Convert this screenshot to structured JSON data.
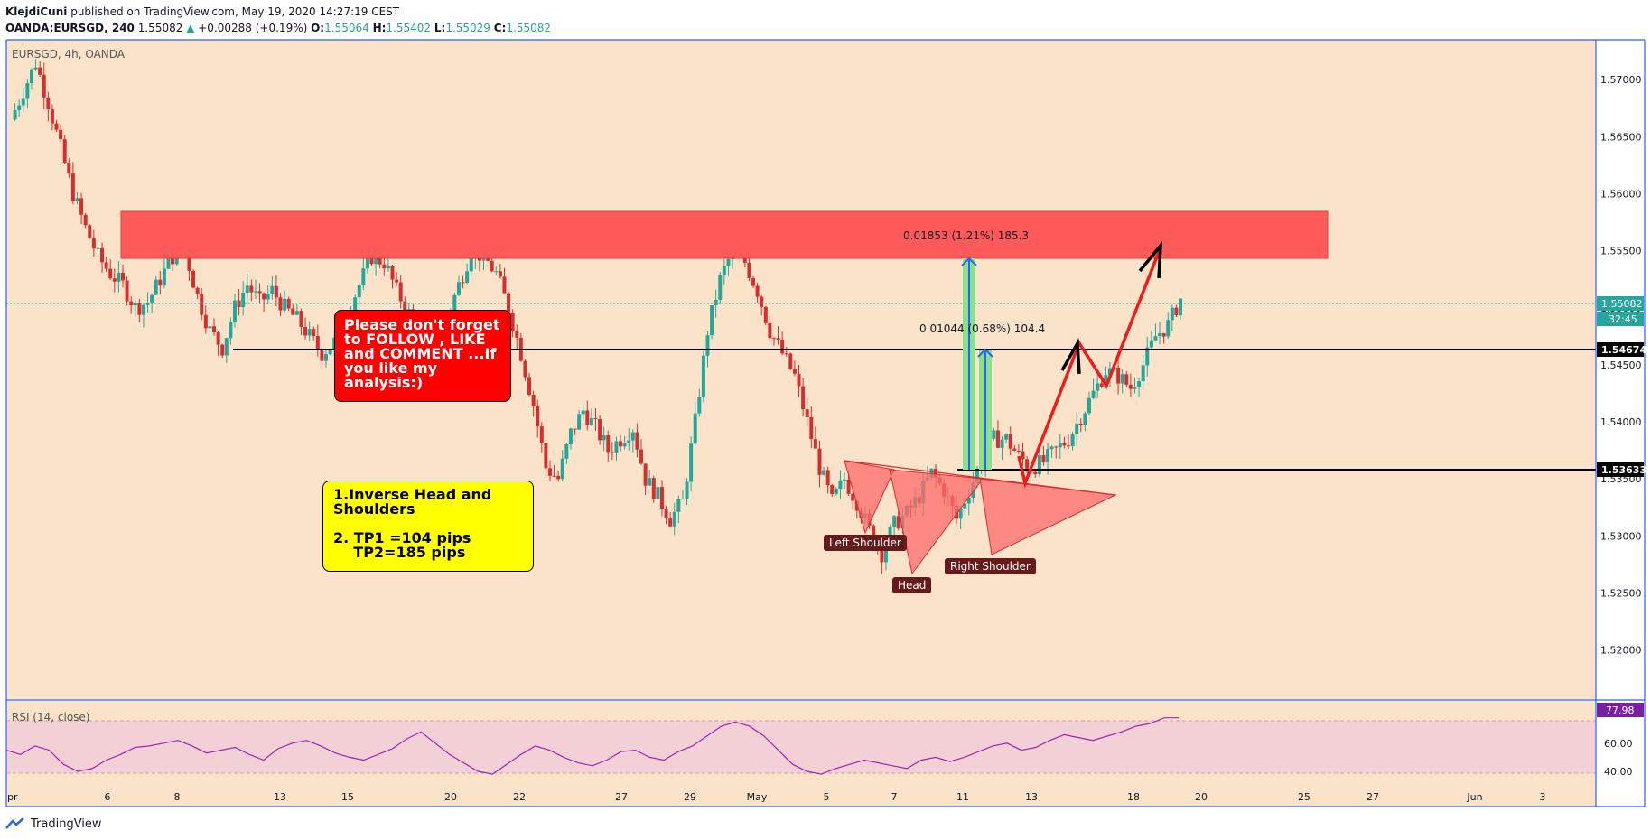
{
  "header": {
    "publisher": "KlejdiCuni",
    "published_text": "published on TradingView.com, May 19, 2020 14:27:19 CEST",
    "symbol": "OANDA:EURSGD, 240",
    "last": "1.55082",
    "change": "+0.00288 (+0.19%)",
    "o_label": "O:",
    "o_val": "1.55064",
    "h_label": "H:",
    "h_val": "1.55402",
    "l_label": "L:",
    "l_val": "1.55029",
    "c_label": "C:",
    "c_val": "1.55082"
  },
  "pane_label": "EURSGD, 4h, OANDA",
  "rsi_label": "RSI (14, close)",
  "footer": {
    "brand": "TradingView"
  },
  "annotations": {
    "promo": "Please don't forget to FOLLOW , LIKE and COMMENT ...If you like my analysis:)",
    "idea_line1": "1.Inverse Head and\nShoulders",
    "idea_line2": "2. TP1 =104 pips\n    TP2=185 pips",
    "left_shoulder": "Left Shoulder",
    "head": "Head",
    "right_shoulder": "Right Shoulder",
    "measure1": "0.01853 (1.21%) 185.3",
    "measure2": "0.01044 (0.68%) 104.4"
  },
  "colors": {
    "background": "#fbe3c9",
    "up": "#26a69a",
    "down": "#d32f2f",
    "resistance_zone": "#ff5a5a",
    "rsi_band": "#f2d0d6",
    "rsi_line": "#9c27b0",
    "axis_border": "#2962ff"
  },
  "chart_data": {
    "type": "candlestick",
    "symbol": "EURSGD",
    "timeframe": "4h",
    "y_axis": {
      "ticks": [
        1.52,
        1.525,
        1.53,
        1.535,
        1.54,
        1.545,
        1.55,
        1.555,
        1.56,
        1.565,
        1.57
      ],
      "range": [
        1.5157,
        1.5735
      ]
    },
    "x_axis": {
      "ticks": [
        "pr",
        "6",
        "8",
        "13",
        "15",
        "20",
        "22",
        "27",
        "29",
        "May",
        "5",
        "7",
        "11",
        "13",
        "18",
        "20",
        "25",
        "27",
        "Jun",
        "3"
      ]
    },
    "price_labels": {
      "last": "1.55082",
      "countdown": "32:45",
      "level1": "1.54674",
      "level2": "1.53633"
    },
    "levels": [
      1.54674,
      1.53633
    ],
    "resistance_zone": [
      1.5547,
      1.5588
    ],
    "close_path": [
      [
        0,
        1.5665
      ],
      [
        1,
        1.569
      ],
      [
        2,
        1.5715
      ],
      [
        3,
        1.568
      ],
      [
        4,
        1.564
      ],
      [
        5,
        1.56
      ],
      [
        6,
        1.557
      ],
      [
        7,
        1.5545
      ],
      [
        8,
        1.553
      ],
      [
        9,
        1.552
      ],
      [
        10,
        1.55
      ],
      [
        11,
        1.5505
      ],
      [
        12,
        1.5525
      ],
      [
        13,
        1.5545
      ],
      [
        14,
        1.555
      ],
      [
        15,
        1.551
      ],
      [
        16,
        1.548
      ],
      [
        17,
        1.5465
      ],
      [
        18,
        1.55
      ],
      [
        19,
        1.552
      ],
      [
        20,
        1.5505
      ],
      [
        21,
        1.5515
      ],
      [
        22,
        1.55
      ],
      [
        23,
        1.549
      ],
      [
        24,
        1.5475
      ],
      [
        25,
        1.546
      ],
      [
        26,
        1.547
      ],
      [
        27,
        1.5495
      ],
      [
        28,
        1.552
      ],
      [
        29,
        1.5545
      ],
      [
        30,
        1.554
      ],
      [
        31,
        1.5515
      ],
      [
        32,
        1.5495
      ],
      [
        33,
        1.548
      ],
      [
        34,
        1.5465
      ],
      [
        35,
        1.549
      ],
      [
        36,
        1.552
      ],
      [
        37,
        1.555
      ],
      [
        38,
        1.5545
      ],
      [
        39,
        1.553
      ],
      [
        40,
        1.55
      ],
      [
        41,
        1.546
      ],
      [
        42,
        1.5415
      ],
      [
        43,
        1.536
      ],
      [
        44,
        1.535
      ],
      [
        45,
        1.539
      ],
      [
        46,
        1.541
      ],
      [
        47,
        1.5395
      ],
      [
        48,
        1.5375
      ],
      [
        49,
        1.5385
      ],
      [
        50,
        1.5395
      ],
      [
        51,
        1.535
      ],
      [
        52,
        1.5335
      ],
      [
        53,
        1.5315
      ],
      [
        54,
        1.533
      ],
      [
        55,
        1.54
      ],
      [
        56,
        1.548
      ],
      [
        57,
        1.5525
      ],
      [
        58,
        1.555
      ],
      [
        59,
        1.554
      ],
      [
        60,
        1.5515
      ],
      [
        61,
        1.548
      ],
      [
        62,
        1.546
      ],
      [
        63,
        1.544
      ],
      [
        64,
        1.54
      ],
      [
        65,
        1.536
      ],
      [
        66,
        1.533
      ],
      [
        67,
        1.535
      ],
      [
        68,
        1.533
      ],
      [
        69,
        1.5305
      ],
      [
        70,
        1.5285
      ],
      [
        71,
        1.531
      ],
      [
        72,
        1.532
      ],
      [
        73,
        1.5335
      ],
      [
        74,
        1.5355
      ],
      [
        75,
        1.534
      ],
      [
        76,
        1.5315
      ],
      [
        77,
        1.534
      ],
      [
        78,
        1.5365
      ],
      [
        79,
        1.5385
      ],
      [
        80,
        1.5385
      ],
      [
        81,
        1.537
      ],
      [
        82,
        1.536
      ],
      [
        83,
        1.5365
      ],
      [
        84,
        1.5375
      ],
      [
        85,
        1.5385
      ],
      [
        86,
        1.5405
      ],
      [
        87,
        1.5425
      ],
      [
        88,
        1.5445
      ],
      [
        89,
        1.544
      ],
      [
        90,
        1.543
      ],
      [
        91,
        1.545
      ],
      [
        92,
        1.5475
      ],
      [
        93,
        1.5485
      ],
      [
        94,
        1.5508
      ]
    ],
    "rsi": {
      "levels": [
        70,
        30
      ],
      "ticks": [
        40,
        60
      ],
      "last": "77.98",
      "values": [
        55,
        52,
        58,
        55,
        45,
        40,
        42,
        48,
        52,
        57,
        58,
        60,
        62,
        58,
        53,
        55,
        57,
        52,
        48,
        56,
        60,
        62,
        58,
        53,
        50,
        48,
        52,
        56,
        63,
        68,
        60,
        52,
        46,
        40,
        38,
        45,
        52,
        58,
        55,
        50,
        46,
        44,
        48,
        54,
        55,
        50,
        48,
        54,
        58,
        65,
        72,
        75,
        72,
        65,
        55,
        45,
        40,
        38,
        42,
        45,
        48,
        46,
        44,
        42,
        48,
        50,
        47,
        50,
        54,
        58,
        60,
        55,
        57,
        62,
        66,
        64,
        62,
        65,
        68,
        72,
        74,
        78,
        78
      ]
    }
  }
}
